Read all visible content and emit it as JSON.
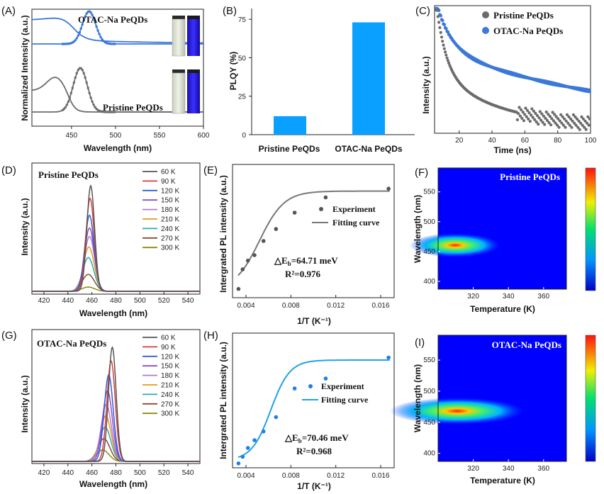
{
  "colors": {
    "blue": "#3b78d8",
    "gray": "#6b6b6b",
    "bar": "#0aa0ff",
    "fitGray": "#777777",
    "fitBlue": "#1fa3e6",
    "legendTemps": [
      "#555555",
      "#e03a3a",
      "#2d5fd6",
      "#8a4fc8",
      "#b07cd0",
      "#e69a1a",
      "#2aaab3",
      "#8a4a30",
      "#8a8a10"
    ]
  },
  "panels": {
    "A": {
      "label": "(A)"
    },
    "B": {
      "label": "(B)"
    },
    "C": {
      "label": "(C)"
    },
    "D": {
      "label": "(D)"
    },
    "E": {
      "label": "(E)"
    },
    "F": {
      "label": "(F)"
    },
    "G": {
      "label": "(G)"
    },
    "H": {
      "label": "(H)"
    },
    "I": {
      "label": "(I)"
    }
  },
  "chart_data": [
    {
      "panel": "A",
      "type": "line",
      "xlabel": "Wavelength (nm)",
      "ylabel": "Normalized Intensity (a.u.)",
      "xlim": [
        405,
        600
      ],
      "xticks": [
        450,
        500,
        550,
        600
      ],
      "series": [
        {
          "name": "OTAC-Na PeQDs",
          "kind": "absorption",
          "color": "#3b78d8"
        },
        {
          "name": "OTAC-Na PeQDs",
          "kind": "emission",
          "peak": 470,
          "color": "#3b78d8"
        },
        {
          "name": "Pristine PeQDs",
          "kind": "absorption",
          "color": "#6b6b6b"
        },
        {
          "name": "Pristine PeQDs",
          "kind": "emission",
          "peak": 460,
          "color": "#6b6b6b"
        }
      ],
      "annotations": [
        "OTAC-Na PeQDs",
        "Pristine PeQDs"
      ]
    },
    {
      "panel": "B",
      "type": "bar",
      "categories": [
        "Pristine PeQDs",
        "OTAC-Na PeQDs"
      ],
      "values": [
        12,
        73
      ],
      "ylabel": "PLQY (%)",
      "ylim": [
        0,
        82
      ],
      "yticks": [
        0,
        25,
        50,
        75
      ]
    },
    {
      "panel": "C",
      "type": "scatter",
      "xlabel": "Time (ns)",
      "ylabel": "Intensity (a.u.)",
      "xlim": [
        5,
        100
      ],
      "xticks": [
        20,
        40,
        60,
        80,
        100
      ],
      "series": [
        {
          "name": "Pristine PeQDs",
          "color": "#6b6b6b"
        },
        {
          "name": "OTAC-Na PeQDs",
          "color": "#3b78d8"
        }
      ]
    },
    {
      "panel": "D",
      "type": "line",
      "title": "Pristine PeQDs",
      "xlabel": "Wavelength (nm)",
      "ylabel": "Intensity (a.u.)",
      "xlim": [
        410,
        550
      ],
      "xticks": [
        420,
        440,
        460,
        480,
        500,
        520,
        540
      ],
      "legend": [
        "60 K",
        "90 K",
        "120 K",
        "150 K",
        "180 K",
        "210 K",
        "240 K",
        "270 K",
        "300 K"
      ],
      "peaks": [
        459,
        458.5,
        458,
        458,
        458,
        457.5,
        457,
        457,
        457
      ],
      "amplitudes": [
        1.0,
        0.88,
        0.72,
        0.6,
        0.52,
        0.42,
        0.32,
        0.16,
        0.04
      ]
    },
    {
      "panel": "E",
      "type": "scatter",
      "xlabel": "1/T (K⁻¹)",
      "ylabel": "Intergrated PL intensity (a.u.)",
      "xlim": [
        0.0028,
        0.0172
      ],
      "ylim": [
        0,
        1.1
      ],
      "xticks": [
        "0.004",
        "0.008",
        "0.012",
        "0.016"
      ],
      "x": [
        0.00333,
        0.0037,
        0.00417,
        0.00476,
        0.00556,
        0.00667,
        0.00833,
        0.0111,
        0.0167
      ],
      "y": [
        0.08,
        0.26,
        0.34,
        0.39,
        0.52,
        0.63,
        0.78,
        0.92,
        1.0
      ],
      "legend": [
        "Experiment",
        "Fitting curve"
      ],
      "annotation": {
        "eb": "△E",
        "sub": "b",
        "rest": "=64.71 meV",
        "r2": "R²=0.976"
      }
    },
    {
      "panel": "F",
      "type": "heatmap",
      "title": "Pristine PeQDs",
      "xlabel": "Temperature (K)",
      "ylabel": "Wavelength (nm)",
      "xticks": [
        320,
        340,
        360
      ],
      "yticks": [
        400,
        450,
        500,
        550
      ],
      "peak_wavelength": 460
    },
    {
      "panel": "G",
      "type": "line",
      "title": "OTAC-Na PeQDs",
      "xlabel": "Wavelength (nm)",
      "ylabel": "Intensity (a.u.)",
      "xlim": [
        410,
        550
      ],
      "xticks": [
        420,
        440,
        460,
        480,
        500,
        520,
        540
      ],
      "legend": [
        "60 K",
        "90 K",
        "120 K",
        "150 K",
        "180 K",
        "210 K",
        "240 K",
        "270 K",
        "300 K"
      ],
      "peaks": [
        477,
        476,
        474,
        473,
        472,
        471.5,
        471,
        470,
        469
      ],
      "amplitudes": [
        1.0,
        0.88,
        0.76,
        0.62,
        0.5,
        0.4,
        0.3,
        0.2,
        0.1
      ]
    },
    {
      "panel": "H",
      "type": "scatter",
      "xlabel": "1/T (K⁻¹)",
      "ylabel": "Intergrated PL intensity (a.u.)",
      "xlim": [
        0.0028,
        0.0172
      ],
      "ylim": [
        0,
        1.1
      ],
      "xticks": [
        "0.004",
        "0.008",
        "0.012",
        "0.016"
      ],
      "x": [
        0.00333,
        0.0037,
        0.00417,
        0.00476,
        0.00556,
        0.00667,
        0.00833,
        0.0111,
        0.0167
      ],
      "y": [
        0.04,
        0.1,
        0.18,
        0.25,
        0.33,
        0.46,
        0.72,
        0.81,
        1.0
      ],
      "legend": [
        "Experiment",
        "Fitting curve"
      ],
      "annotation": {
        "eb": "△E",
        "sub": "b",
        "rest": "=70.46 meV",
        "r2": "R²=0.968"
      }
    },
    {
      "panel": "I",
      "type": "heatmap",
      "title": "OTAC-Na PeQDs",
      "xlabel": "Temperature (K)",
      "ylabel": "Wavelength (nm)",
      "xticks": [
        320,
        340,
        360
      ],
      "yticks": [
        400,
        450,
        500,
        550
      ],
      "peak_wavelength": 470
    }
  ]
}
